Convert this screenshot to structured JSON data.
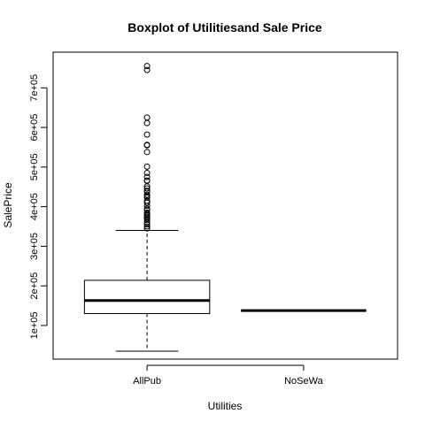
{
  "chart_data": {
    "type": "boxplot",
    "title": "Boxplot of Utilitiesand Sale Price",
    "xlabel": "Utilities",
    "ylabel": "SalePrice",
    "categories": [
      "AllPub",
      "NoSeWa"
    ],
    "ylim": [
      15000,
      790000
    ],
    "yticks": [
      100000,
      200000,
      300000,
      400000,
      500000,
      600000,
      700000
    ],
    "ytick_labels": [
      "1e+05",
      "2e+05",
      "3e+05",
      "4e+05",
      "5e+05",
      "6e+05",
      "7e+05"
    ],
    "boxes": [
      {
        "name": "AllPub",
        "whisker_low": 35000,
        "q1": 130000,
        "median": 163000,
        "q3": 214000,
        "whisker_high": 340000,
        "outliers": [
          755000,
          745000,
          625000,
          611000,
          582000,
          556000,
          555000,
          538000,
          501000,
          485000,
          475000,
          466000,
          465000,
          451000,
          446000,
          440000,
          438000,
          430000,
          426000,
          423000,
          415000,
          410000,
          402000,
          395000,
          392000,
          385000,
          380000,
          378000,
          375000,
          372000,
          369000,
          367000,
          360000,
          355000,
          350000,
          345000
        ]
      },
      {
        "name": "NoSeWa",
        "whisker_low": 137500,
        "q1": 137500,
        "median": 137500,
        "q3": 137500,
        "whisker_high": 137500,
        "outliers": []
      }
    ],
    "grid": false,
    "legend": "none"
  }
}
